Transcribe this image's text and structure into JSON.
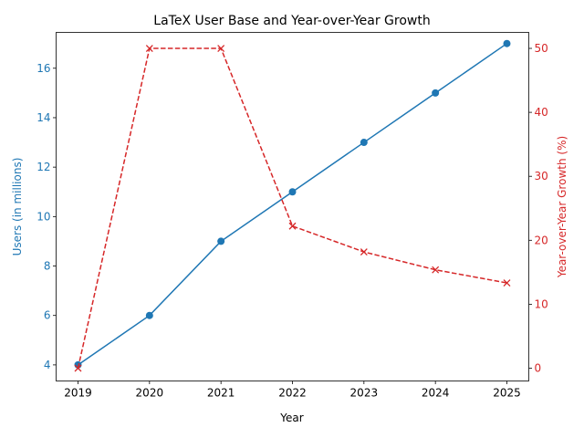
{
  "chart_data": {
    "type": "line",
    "title": "LaTeX User Base and Year-over-Year Growth",
    "xlabel": "Year",
    "x": [
      "2019",
      "2020",
      "2021",
      "2022",
      "2023",
      "2024",
      "2025"
    ],
    "left_axis": {
      "label": "Users (in millions)",
      "ylim": [
        3.35,
        17.45
      ],
      "ticks": [
        4,
        6,
        8,
        10,
        12,
        14,
        16
      ],
      "color": "#1f77b4"
    },
    "right_axis": {
      "label": "Year-over-Year Growth (%)",
      "ylim": [
        -2.0,
        52.5
      ],
      "ticks": [
        0,
        10,
        20,
        30,
        40,
        50
      ],
      "color": "#d62728"
    },
    "series": [
      {
        "name": "Users",
        "axis": "left",
        "color": "#1f77b4",
        "marker": "circle",
        "linestyle": "solid",
        "values": [
          4,
          6,
          9,
          11,
          13,
          15,
          17
        ]
      },
      {
        "name": "Year-over-Year Growth",
        "axis": "right",
        "color": "#d62728",
        "marker": "x",
        "linestyle": "dashed",
        "values": [
          0,
          50,
          50,
          22.22,
          18.18,
          15.38,
          13.33
        ]
      }
    ]
  }
}
